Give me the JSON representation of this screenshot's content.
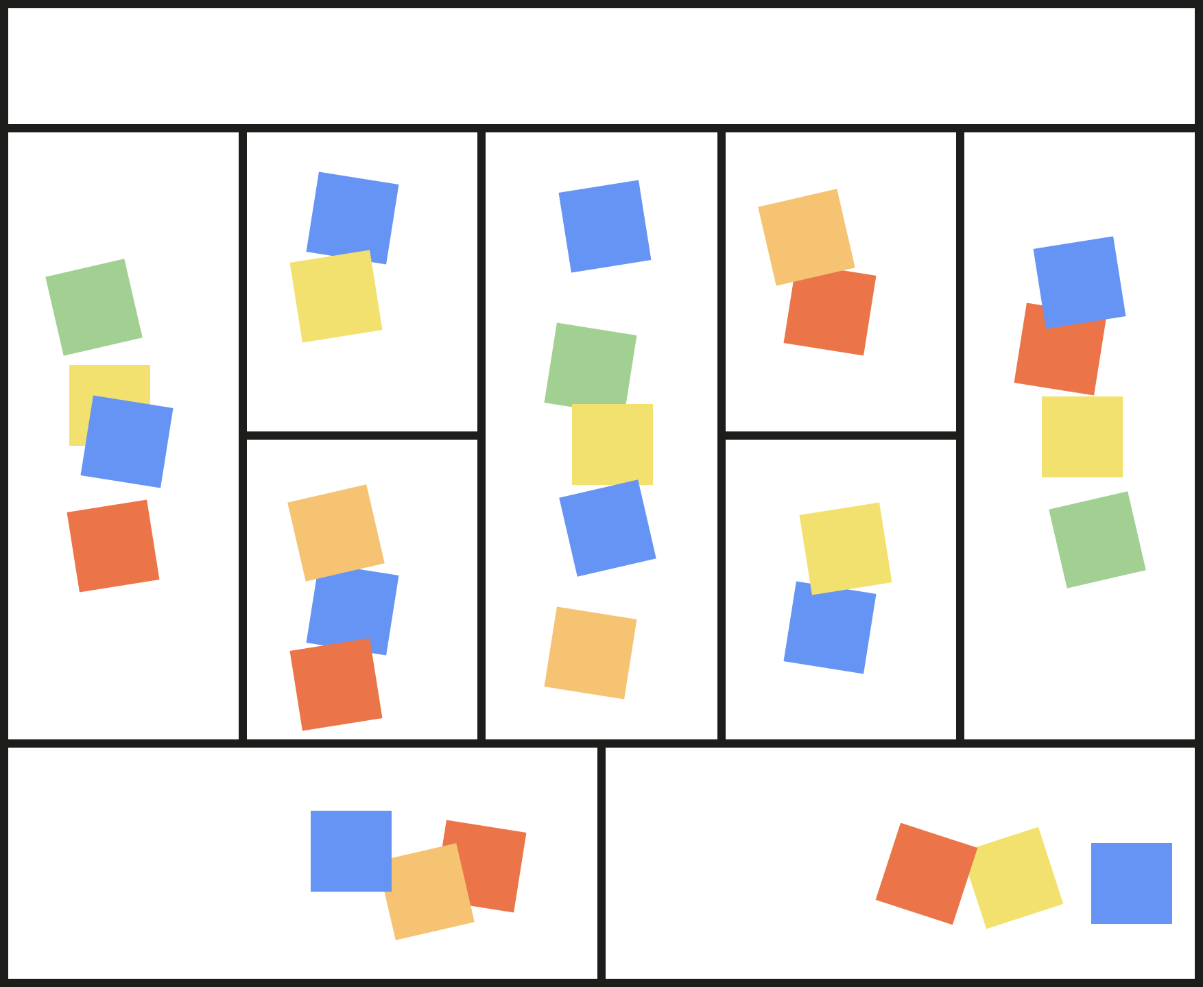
{
  "colors": {
    "line": "#1d1d1b",
    "background": "#ffffff",
    "blue": "#6694f4",
    "yellow": "#f2e16e",
    "green": "#a2cf92",
    "orange": "#f5c372",
    "red": "#eb7548"
  }
}
